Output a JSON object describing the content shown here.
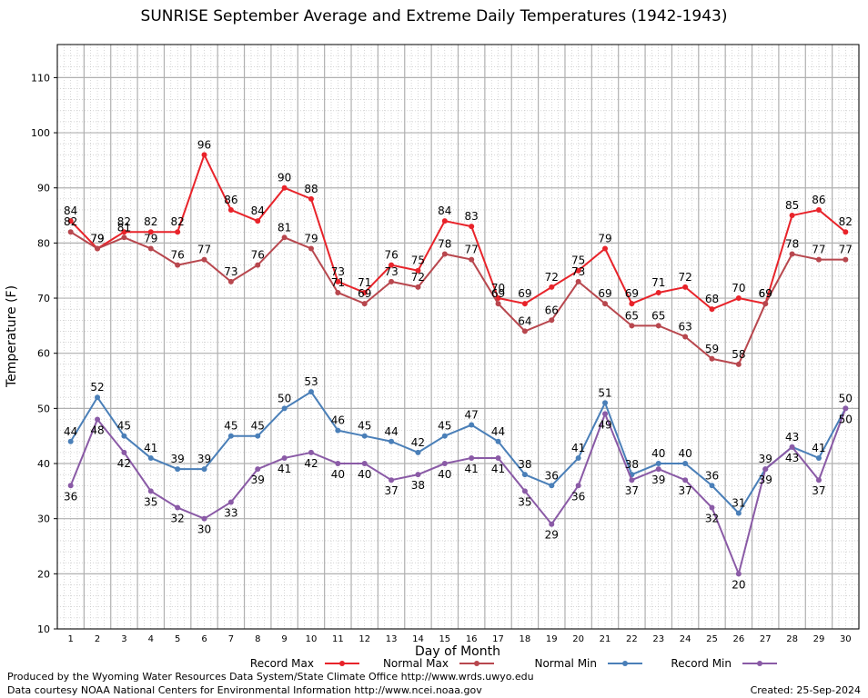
{
  "chart_data": {
    "type": "line",
    "title": "SUNRISE September Average and Extreme Daily Temperatures (1942-1943)",
    "xlabel": "Day of Month",
    "ylabel": "Temperature (F)",
    "xlim": [
      0.5,
      30.5
    ],
    "ylim": [
      10,
      116
    ],
    "yticks": [
      10,
      20,
      30,
      40,
      50,
      60,
      70,
      80,
      90,
      100,
      110
    ],
    "grid": true,
    "legend_position": "bottom",
    "categories": [
      1,
      2,
      3,
      4,
      5,
      6,
      7,
      8,
      9,
      10,
      11,
      12,
      13,
      14,
      15,
      16,
      17,
      18,
      19,
      20,
      21,
      22,
      23,
      24,
      25,
      26,
      27,
      28,
      29,
      30
    ],
    "series": [
      {
        "name": "Record Max",
        "color": "#e8232a",
        "label_position": "above",
        "values": [
          84,
          79,
          82,
          82,
          82,
          96,
          86,
          84,
          90,
          88,
          73,
          71,
          76,
          75,
          84,
          83,
          70,
          69,
          72,
          75,
          79,
          69,
          71,
          72,
          68,
          70,
          69,
          85,
          86,
          82
        ]
      },
      {
        "name": "Normal Max",
        "color": "#b8474e",
        "label_position": "above",
        "values": [
          82,
          79,
          81,
          79,
          76,
          77,
          73,
          76,
          81,
          79,
          71,
          69,
          73,
          72,
          78,
          77,
          69,
          64,
          66,
          73,
          69,
          65,
          65,
          63,
          59,
          58,
          69,
          78,
          77,
          77
        ]
      },
      {
        "name": "Normal Min",
        "color": "#4a7fb8",
        "label_position": "above",
        "values": [
          44,
          52,
          45,
          41,
          39,
          39,
          45,
          45,
          50,
          53,
          46,
          45,
          44,
          42,
          45,
          47,
          44,
          38,
          36,
          41,
          51,
          38,
          40,
          40,
          36,
          31,
          39,
          43,
          41,
          50
        ]
      },
      {
        "name": "Record Min",
        "color": "#8a5aa6",
        "label_position": "below",
        "values": [
          36,
          48,
          42,
          35,
          32,
          30,
          33,
          39,
          41,
          42,
          40,
          40,
          37,
          38,
          40,
          41,
          41,
          35,
          29,
          36,
          49,
          37,
          39,
          37,
          32,
          20,
          39,
          43,
          37,
          50
        ]
      }
    ]
  },
  "footer": {
    "credit_line_1": "Produced by the Wyoming Water Resources Data System/State Climate Office http://www.wrds.uwyo.edu",
    "credit_line_2": "Data courtesy NOAA National Centers for Environmental Information http://www.ncei.noaa.gov",
    "created": "Created:  25-Sep-2024"
  }
}
